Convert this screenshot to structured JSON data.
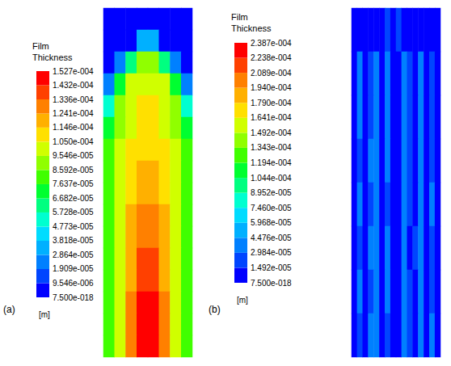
{
  "chart_data": [
    {
      "type": "heatmap",
      "annotations": [
        "(a)"
      ],
      "tick_labels": false,
      "colors": [
        "#0000ff",
        "#0045ff",
        "#0080ff",
        "#00b0ff",
        "#00dcff",
        "#00ffd0",
        "#00ff80",
        "#00ff30",
        "#40ff00",
        "#90ff00",
        "#d0ff00",
        "#ffe000",
        "#ffb000",
        "#ff8000",
        "#ff4000",
        "#ff0000"
      ],
      "cells": [
        [
          0,
          0,
          0,
          0,
          0,
          0,
          0,
          0
        ],
        [
          0,
          0,
          0,
          3e-05,
          3e-05,
          0,
          0,
          0
        ],
        [
          0,
          2e-05,
          6e-05,
          9e-05,
          9e-05,
          6e-05,
          2e-05,
          0
        ],
        [
          2e-05,
          7e-05,
          0.0001,
          0.0001,
          0.0001,
          0.0001,
          7e-05,
          2e-05
        ],
        [
          5e-05,
          9e-05,
          0.0001,
          0.00011,
          0.00011,
          0.0001,
          9e-05,
          5e-05
        ],
        [
          7e-05,
          9e-05,
          0.0001,
          0.00011,
          0.00011,
          0.0001,
          9e-05,
          7e-05
        ],
        [
          8e-05,
          0.0001,
          0.00011,
          0.00011,
          0.00011,
          0.00011,
          0.0001,
          8e-05
        ],
        [
          8e-05,
          0.0001,
          0.00011,
          0.00012,
          0.00012,
          0.00011,
          0.0001,
          8e-05
        ],
        [
          8e-05,
          0.0001,
          0.00011,
          0.00012,
          0.00012,
          0.00011,
          0.0001,
          8e-05
        ],
        [
          8e-05,
          0.0001,
          0.00012,
          0.00013,
          0.00013,
          0.00012,
          0.0001,
          8e-05
        ],
        [
          8e-05,
          0.0001,
          0.00012,
          0.00013,
          0.00013,
          0.00012,
          0.0001,
          8e-05
        ],
        [
          8e-05,
          0.0001,
          0.00012,
          0.00014,
          0.00014,
          0.00012,
          0.0001,
          8e-05
        ],
        [
          8e-05,
          0.0001,
          0.00012,
          0.00014,
          0.00014,
          0.00012,
          0.0001,
          8e-05
        ],
        [
          8e-05,
          0.0001,
          0.00013,
          0.00015,
          0.00015,
          0.00013,
          0.0001,
          8e-05
        ],
        [
          8e-05,
          0.0001,
          0.00013,
          0.00015,
          0.00015,
          0.00013,
          0.0001,
          8e-05
        ],
        [
          8e-05,
          0.0001,
          0.00013,
          0.00015,
          0.00015,
          0.00013,
          0.0001,
          8e-05
        ]
      ],
      "colorbar": {
        "title": "Film Thickness",
        "unit": "[m]",
        "lim": [
          7.5e-18,
          0.0001527
        ],
        "ticks": [
          {
            "value": 7.5e-18,
            "label": "7.500e-018"
          },
          {
            "value": 9.546e-06,
            "label": "9.546e-006"
          },
          {
            "value": 1.909e-05,
            "label": "1.909e-005"
          },
          {
            "value": 2.864e-05,
            "label": "2.864e-005"
          },
          {
            "value": 3.818e-05,
            "label": "3.818e-005"
          },
          {
            "value": 4.773e-05,
            "label": "4.773e-005"
          },
          {
            "value": 5.728e-05,
            "label": "5.728e-005"
          },
          {
            "value": 6.682e-05,
            "label": "6.682e-005"
          },
          {
            "value": 7.637e-05,
            "label": "7.637e-005"
          },
          {
            "value": 8.592e-05,
            "label": "8.592e-005"
          },
          {
            "value": 9.546e-05,
            "label": "9.546e-005"
          },
          {
            "value": 0.000105,
            "label": "1.050e-004"
          },
          {
            "value": 0.0001146,
            "label": "1.146e-004"
          },
          {
            "value": 0.0001241,
            "label": "1.241e-004"
          },
          {
            "value": 0.0001336,
            "label": "1.336e-004"
          },
          {
            "value": 0.0001432,
            "label": "1.432e-004"
          },
          {
            "value": 0.0001527,
            "label": "1.527e-004"
          }
        ]
      }
    },
    {
      "type": "heatmap",
      "annotations": [
        "(b)"
      ],
      "tick_labels": false,
      "colors": [
        "#0000ff",
        "#0045ff",
        "#0080ff",
        "#00b0ff",
        "#00dcff",
        "#00ffd0",
        "#00ff80",
        "#00ff30",
        "#40ff00",
        "#90ff00",
        "#d0ff00",
        "#ffe000",
        "#ffb000",
        "#ff8000",
        "#ff4000",
        "#ff0000"
      ],
      "cells": [
        [
          0,
          0,
          0,
          0,
          0,
          1e-05,
          1.6e-05,
          1e-05,
          1.6e-05,
          1e-05,
          0,
          0,
          0,
          0,
          0,
          0
        ],
        [
          1e-05,
          3e-05,
          1e-05,
          2e-05,
          3.2e-05,
          1e-05,
          3e-05,
          1e-05,
          1e-05,
          3.2e-05,
          2e-05,
          1e-05,
          3e-05,
          1e-05,
          2e-05,
          1e-05
        ],
        [
          1e-05,
          3e-05,
          1e-05,
          2e-05,
          4e-05,
          1e-05,
          3e-05,
          1e-05,
          1e-05,
          4e-05,
          2e-05,
          1e-05,
          3e-05,
          1e-05,
          2e-05,
          1e-05
        ],
        [
          1e-05,
          2e-05,
          1e-05,
          3e-05,
          3.2e-05,
          1e-05,
          3e-05,
          1e-05,
          1e-05,
          3e-05,
          2e-05,
          1e-05,
          3.2e-05,
          1e-05,
          2e-05,
          1e-05
        ],
        [
          1e-05,
          3e-05,
          1e-05,
          2e-05,
          3e-05,
          1e-05,
          2e-05,
          1e-05,
          1e-05,
          3.2e-05,
          2e-05,
          1e-05,
          3e-05,
          1e-05,
          3e-05,
          1e-05
        ],
        [
          1e-05,
          2e-05,
          1e-05,
          3e-05,
          3.2e-05,
          1e-05,
          3e-05,
          1e-05,
          1e-05,
          3e-05,
          1e-05,
          2e-05,
          3e-05,
          1e-05,
          2e-05,
          1e-05
        ],
        [
          1e-05,
          3e-05,
          1e-05,
          2e-05,
          3e-05,
          1e-05,
          3e-05,
          1e-05,
          1e-05,
          3.2e-05,
          2e-05,
          1e-05,
          3e-05,
          1e-05,
          2e-05,
          1e-05
        ],
        [
          1e-05,
          2e-05,
          1e-05,
          3e-05,
          3e-05,
          1e-05,
          2e-05,
          1e-05,
          1e-05,
          3e-05,
          2e-05,
          1e-05,
          3e-05,
          1e-05,
          3e-05,
          1e-05
        ]
      ],
      "colorbar": {
        "title": "Film Thickness",
        "unit": "[m]",
        "lim": [
          7.5e-18,
          0.0002387
        ],
        "ticks": [
          {
            "value": 7.5e-18,
            "label": "7.500e-018"
          },
          {
            "value": 1.492e-05,
            "label": "1.492e-005"
          },
          {
            "value": 2.984e-05,
            "label": "2.984e-005"
          },
          {
            "value": 4.476e-05,
            "label": "4.476e-005"
          },
          {
            "value": 5.968e-05,
            "label": "5.968e-005"
          },
          {
            "value": 7.46e-05,
            "label": "7.460e-005"
          },
          {
            "value": 8.952e-05,
            "label": "8.952e-005"
          },
          {
            "value": 0.0001044,
            "label": "1.044e-004"
          },
          {
            "value": 0.0001194,
            "label": "1.194e-004"
          },
          {
            "value": 0.0001343,
            "label": "1.343e-004"
          },
          {
            "value": 0.0001492,
            "label": "1.492e-004"
          },
          {
            "value": 0.0001641,
            "label": "1.641e-004"
          },
          {
            "value": 0.000179,
            "label": "1.790e-004"
          },
          {
            "value": 0.000194,
            "label": "1.940e-004"
          },
          {
            "value": 0.0002089,
            "label": "2.089e-004"
          },
          {
            "value": 0.0002238,
            "label": "2.238e-004"
          },
          {
            "value": 0.0002387,
            "label": "2.387e-004"
          }
        ]
      }
    }
  ]
}
